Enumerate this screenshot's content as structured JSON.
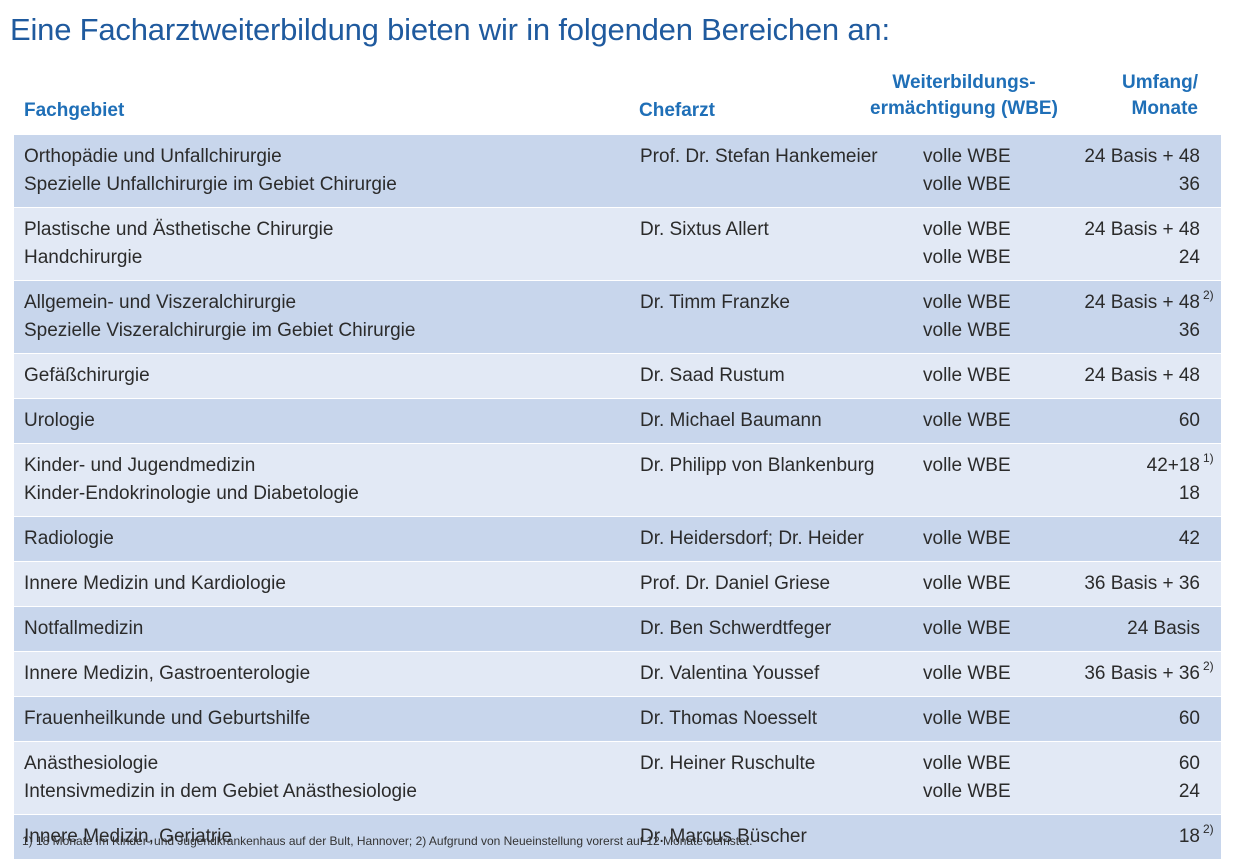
{
  "title": "Eine Facharztweiterbildung bieten wir in folgenden Bereichen an:",
  "headers": {
    "fachgebiet": "Fachgebiet",
    "chefarzt": "Chefarzt",
    "wbe_line1": "Weiterbildungs-",
    "wbe_line2": "ermächtigung (WBE)",
    "umfang_line1": "Umfang/",
    "umfang_line2": "Monate"
  },
  "rows": [
    {
      "shade": "dark",
      "lines": [
        {
          "fach": "Orthopädie und Unfallchirurgie",
          "chef": "Prof. Dr. Stefan Hankemeier",
          "wbe": "volle WBE",
          "umfang": "24 Basis + 48",
          "sup": ""
        },
        {
          "fach": "Spezielle Unfallchirurgie im Gebiet Chirurgie",
          "chef": "",
          "wbe": "volle WBE",
          "umfang": "36",
          "sup": ""
        }
      ]
    },
    {
      "shade": "light",
      "lines": [
        {
          "fach": "Plastische und Ästhetische Chirurgie",
          "chef": "Dr. Sixtus Allert",
          "wbe": "volle WBE",
          "umfang": "24 Basis + 48",
          "sup": ""
        },
        {
          "fach": "Handchirurgie",
          "chef": "",
          "wbe": "volle WBE",
          "umfang": "24",
          "sup": ""
        }
      ]
    },
    {
      "shade": "dark",
      "lines": [
        {
          "fach": "Allgemein- und Viszeralchirurgie",
          "chef": "Dr. Timm Franzke",
          "wbe": "volle WBE",
          "umfang": "24 Basis + 48",
          "sup": "2)"
        },
        {
          "fach": "Spezielle Viszeralchirurgie im Gebiet Chirurgie",
          "chef": "",
          "wbe": "volle WBE",
          "umfang": "36",
          "sup": ""
        }
      ]
    },
    {
      "shade": "light",
      "lines": [
        {
          "fach": "Gefäßchirurgie",
          "chef": "Dr. Saad Rustum",
          "wbe": "volle WBE",
          "umfang": "24 Basis + 48",
          "sup": ""
        }
      ]
    },
    {
      "shade": "dark",
      "lines": [
        {
          "fach": "Urologie",
          "chef": "Dr. Michael Baumann",
          "wbe": "volle WBE",
          "umfang": "60",
          "sup": ""
        }
      ]
    },
    {
      "shade": "light",
      "lines": [
        {
          "fach": "Kinder- und Jugendmedizin",
          "chef": "Dr. Philipp von Blankenburg",
          "wbe": "volle WBE",
          "umfang": "42+18",
          "sup": "1)"
        },
        {
          "fach": "Kinder-Endokrinologie und Diabetologie",
          "chef": "",
          "wbe": "",
          "umfang": "18",
          "sup": ""
        }
      ]
    },
    {
      "shade": "dark",
      "lines": [
        {
          "fach": "Radiologie",
          "chef": "Dr. Heidersdorf; Dr. Heider",
          "wbe": "volle WBE",
          "umfang": "42",
          "sup": ""
        }
      ]
    },
    {
      "shade": "light",
      "lines": [
        {
          "fach": "Innere Medizin und Kardiologie",
          "chef": "Prof. Dr. Daniel Griese",
          "wbe": "volle WBE",
          "umfang": "36 Basis + 36",
          "sup": ""
        }
      ]
    },
    {
      "shade": "dark",
      "lines": [
        {
          "fach": "Notfallmedizin",
          "chef": "Dr. Ben Schwerdtfeger",
          "wbe": "volle WBE",
          "umfang": "24 Basis",
          "sup": ""
        }
      ]
    },
    {
      "shade": "light",
      "lines": [
        {
          "fach": "Innere Medizin, Gastroenterologie",
          "chef": "Dr. Valentina Youssef",
          "wbe": "volle WBE",
          "umfang": "36 Basis + 36",
          "sup": "2)"
        }
      ]
    },
    {
      "shade": "dark",
      "lines": [
        {
          "fach": "Frauenheilkunde und Geburtshilfe",
          "chef": "Dr. Thomas Noesselt",
          "wbe": "volle WBE",
          "umfang": "60",
          "sup": ""
        }
      ]
    },
    {
      "shade": "light",
      "lines": [
        {
          "fach": "Anästhesiologie",
          "chef": "Dr. Heiner Ruschulte",
          "wbe": "volle WBE",
          "umfang": "60",
          "sup": ""
        },
        {
          "fach": "Intensivmedizin in dem Gebiet Anästhesiologie",
          "chef": "",
          "wbe": "volle WBE",
          "umfang": "24",
          "sup": ""
        }
      ]
    },
    {
      "shade": "dark",
      "lines": [
        {
          "fach": " Innere Medizin, Geriatrie",
          "chef": "Dr. Marcus Büscher",
          "wbe": "",
          "umfang": "18",
          "sup": "2)"
        }
      ]
    }
  ],
  "footnote": "1) 18 Monate im Kinder- und Jugendkrankenhaus auf der Bult, Hannover; 2) Aufgrund von Neueinstellung vorerst auf 12 Monate befristet."
}
